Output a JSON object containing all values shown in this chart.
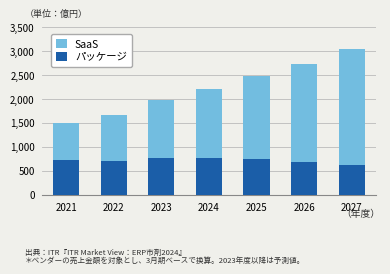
{
  "years": [
    "2021",
    "2022",
    "2023",
    "2024",
    "2025",
    "2026",
    "2027"
  ],
  "saas": [
    780,
    960,
    1230,
    1460,
    1740,
    2050,
    2420
  ],
  "package": [
    720,
    700,
    760,
    760,
    740,
    680,
    630
  ],
  "saas_color": "#72BDE0",
  "package_color": "#1B5EA8",
  "ylim": [
    0,
    3500
  ],
  "yticks": [
    0,
    500,
    1000,
    1500,
    2000,
    2500,
    3000,
    3500
  ],
  "title_unit": "（単位：億円）",
  "xlabel": "（年度）",
  "legend_saas": "SaaS",
  "legend_package": "パッケージ",
  "footnote1": "出典：ITR『ITR Market View：ERP市剤2024』",
  "footnote2": "＊ベンダーの売上金額を対象とし、3月期ベースで换算。2023年度以降は予測値。",
  "background_color": "#f0f0eb",
  "plot_bg_color": "#f0f0eb",
  "grid_color": "#bbbbbb"
}
